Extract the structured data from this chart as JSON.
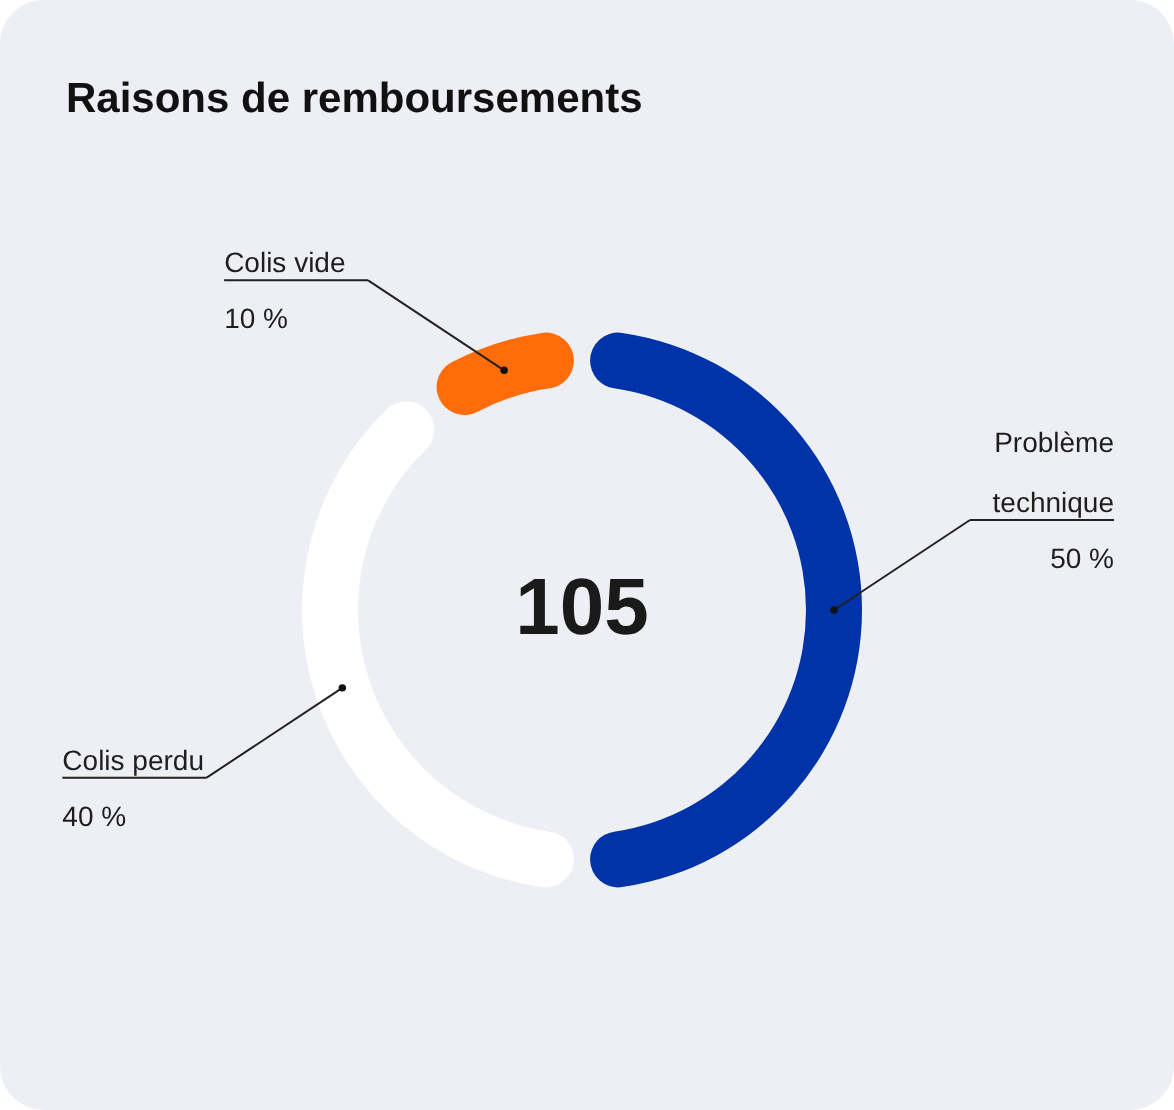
{
  "chart_data": {
    "type": "donut",
    "title": "Raisons de remboursements",
    "categories": [
      "Problème technique",
      "Colis perdu",
      "Colis vide"
    ],
    "values": [
      50,
      40,
      10
    ],
    "colors": [
      "#0032a8",
      "#ffffff",
      "#ff6c0a"
    ],
    "value_labels": [
      "50 %",
      "40 %",
      "10 %"
    ],
    "annotations": [
      "105"
    ]
  }
}
